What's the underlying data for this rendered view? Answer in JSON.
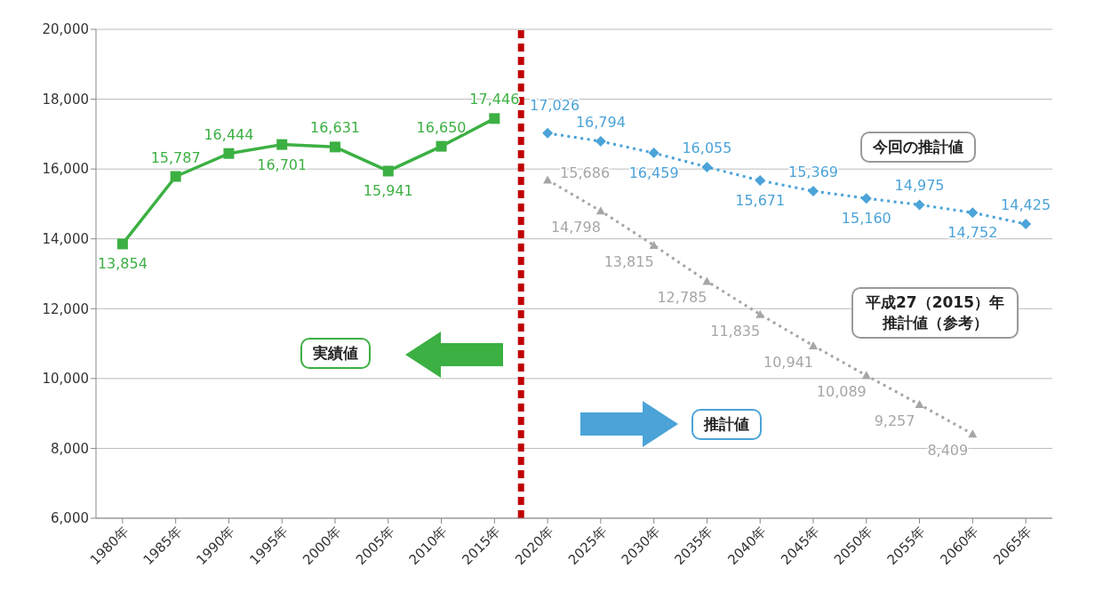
{
  "chart_data": {
    "type": "line",
    "xlim": [
      1977.5,
      2067.5
    ],
    "xticks": [
      {
        "value": 1980,
        "label": "1980年"
      },
      {
        "value": 1985,
        "label": "1985年"
      },
      {
        "value": 1990,
        "label": "1990年"
      },
      {
        "value": 1995,
        "label": "1995年"
      },
      {
        "value": 2000,
        "label": "2000年"
      },
      {
        "value": 2005,
        "label": "2005年"
      },
      {
        "value": 2010,
        "label": "2010年"
      },
      {
        "value": 2015,
        "label": "2015年"
      },
      {
        "value": 2020,
        "label": "2020年"
      },
      {
        "value": 2025,
        "label": "2025年"
      },
      {
        "value": 2030,
        "label": "2030年"
      },
      {
        "value": 2035,
        "label": "2035年"
      },
      {
        "value": 2040,
        "label": "2040年"
      },
      {
        "value": 2045,
        "label": "2045年"
      },
      {
        "value": 2050,
        "label": "2050年"
      },
      {
        "value": 2055,
        "label": "2055年"
      },
      {
        "value": 2060,
        "label": "2060年"
      },
      {
        "value": 2065,
        "label": "2065年"
      }
    ],
    "ylim": [
      6000,
      20000
    ],
    "yticks": [
      {
        "value": 6000,
        "label": "6,000"
      },
      {
        "value": 8000,
        "label": "8,000"
      },
      {
        "value": 10000,
        "label": "10,000"
      },
      {
        "value": 12000,
        "label": "12,000"
      },
      {
        "value": 14000,
        "label": "14,000"
      },
      {
        "value": 16000,
        "label": "16,000"
      },
      {
        "value": 18000,
        "label": "18,000"
      },
      {
        "value": 20000,
        "label": "20,000"
      }
    ],
    "grid": "y",
    "series": [
      {
        "color": "#3cb043",
        "marker": "square",
        "line_style": "solid",
        "x": [
          1980,
          1985,
          1990,
          1995,
          2000,
          2005,
          2010,
          2015
        ],
        "values": [
          13854,
          15787,
          16444,
          16701,
          16631,
          15941,
          16650,
          17446
        ],
        "value_labels": [
          "13,854",
          "15,787",
          "16,444",
          "16,701",
          "16,631",
          "15,941",
          "16,650",
          "17,446"
        ]
      },
      {
        "color": "#4ba3d8",
        "marker": "diamond",
        "line_style": "dotted",
        "x": [
          2020,
          2025,
          2030,
          2035,
          2040,
          2045,
          2050,
          2055,
          2060,
          2065
        ],
        "values": [
          17026,
          16794,
          16459,
          16055,
          15671,
          15369,
          15160,
          14975,
          14752,
          14425
        ],
        "value_labels": [
          "17,026",
          "16,794",
          "16,459",
          "16,055",
          "15,671",
          "15,369",
          "15,160",
          "14,975",
          "14,752",
          "14,425"
        ]
      },
      {
        "color": "#a6a6a6",
        "marker": "triangle",
        "line_style": "dotted",
        "x": [
          2020,
          2025,
          2030,
          2035,
          2040,
          2045,
          2050,
          2055,
          2060
        ],
        "values": [
          15686,
          14798,
          13815,
          12785,
          11835,
          10941,
          10089,
          9257,
          8409
        ],
        "value_labels": [
          "15,686",
          "14,798",
          "13,815",
          "12,785",
          "11,835",
          "10,941",
          "10,089",
          "9,257",
          "8,409"
        ]
      }
    ],
    "ref_lines": [
      {
        "axis": "x",
        "value": 2017.5,
        "color": "#c00000",
        "line_style": "dashed"
      }
    ],
    "annotations": [
      "実績値",
      "推計値",
      "今回の推計値",
      "平成27（2015）年推計値（参考）"
    ]
  }
}
